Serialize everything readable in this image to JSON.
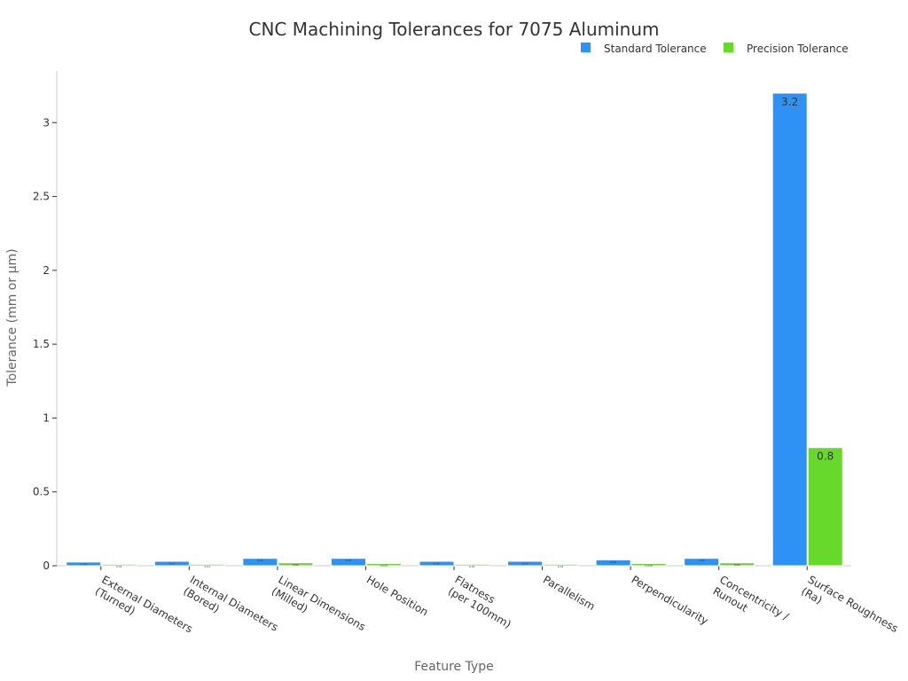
{
  "chart_data": {
    "type": "bar",
    "title": "CNC Machining Tolerances for 7075 Aluminum",
    "xlabel": "Feature Type",
    "ylabel": "Tolerance (mm or µm)",
    "ylim": [
      0,
      3.35
    ],
    "yticks": [
      0,
      0.5,
      1,
      1.5,
      2,
      2.5,
      3
    ],
    "grid": false,
    "legend_position": "top-right",
    "categories": [
      [
        "External Diameters",
        "(Turned)"
      ],
      [
        "Internal Diameters",
        "(Bored)"
      ],
      [
        "Linear Dimensions",
        "(Milled)"
      ],
      [
        "Hole Position"
      ],
      [
        "Flatness",
        "(per 100mm)"
      ],
      [
        "Parallelism"
      ],
      [
        "Perpendicularity"
      ],
      [
        "Concentricity /",
        "Runout"
      ],
      [
        "Surface Roughness",
        "(Ra)"
      ]
    ],
    "series": [
      {
        "name": "Standard Tolerance",
        "color": "#2e92f4",
        "values": [
          0.025,
          0.03,
          0.05,
          0.05,
          0.03,
          0.03,
          0.04,
          0.05,
          3.2
        ]
      },
      {
        "name": "Precision Tolerance",
        "color": "#66d92a",
        "values": [
          0.01,
          0.01,
          0.02,
          0.015,
          0.01,
          0.01,
          0.015,
          0.02,
          0.8
        ]
      }
    ]
  }
}
